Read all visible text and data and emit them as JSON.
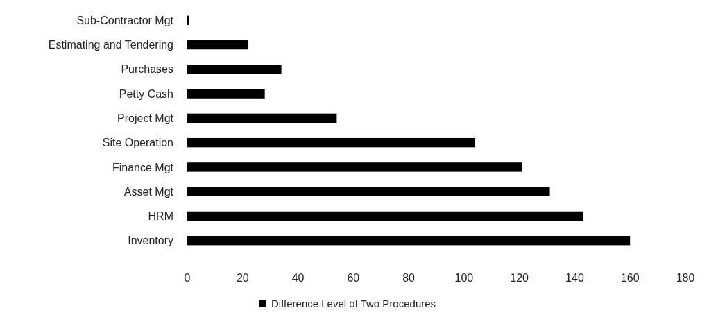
{
  "chart_data": {
    "type": "bar",
    "orientation": "horizontal",
    "categories": [
      "Sub-Contractor Mgt",
      "Estimating and Tendering",
      "Purchases",
      "Petty Cash",
      "Project Mgt",
      "Site Operation",
      "Finance Mgt",
      "Asset Mgt",
      "HRM",
      "Inventory"
    ],
    "series": [
      {
        "name": "Difference Level of Two Procedures",
        "color": "#000000",
        "values": [
          0.5,
          22,
          34,
          28,
          54,
          104,
          121,
          131,
          143,
          160
        ]
      }
    ],
    "xlim": [
      0,
      180
    ],
    "xticks": [
      0,
      20,
      40,
      60,
      80,
      100,
      120,
      140,
      160,
      180
    ],
    "legend": "bottom"
  }
}
